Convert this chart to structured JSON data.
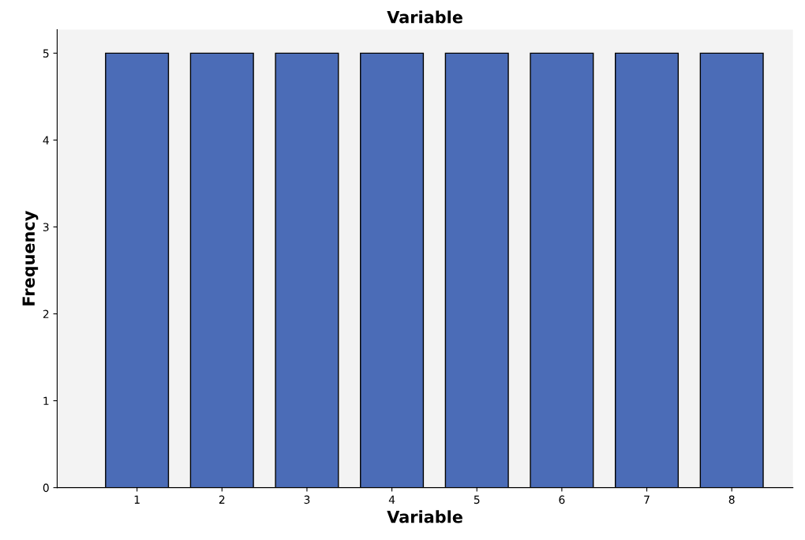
{
  "chart_data": {
    "type": "bar",
    "title": "Variable",
    "xlabel": "Variable",
    "ylabel": "Frequency",
    "categories": [
      "1",
      "2",
      "3",
      "4",
      "5",
      "6",
      "7",
      "8"
    ],
    "values": [
      5,
      5,
      5,
      5,
      5,
      5,
      5,
      5
    ],
    "color": "#4b6cb7",
    "ylim": [
      0,
      5.27
    ],
    "yticks": [
      0,
      1,
      2,
      3,
      4,
      5
    ],
    "grid": false
  }
}
